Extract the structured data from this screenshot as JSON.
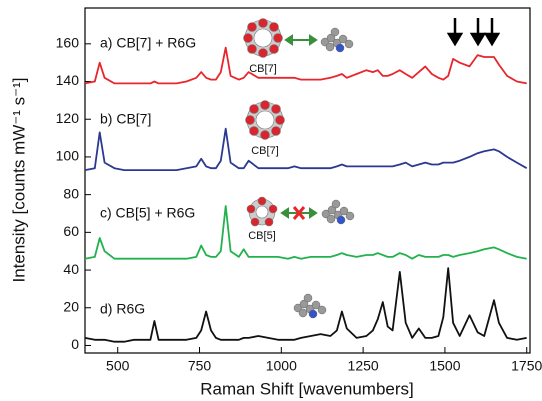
{
  "chart_data": {
    "type": "line",
    "xlabel": "Raman Shift [wavenumbers]",
    "ylabel": "Intensity [counts mW⁻¹ s⁻¹]",
    "x": [
      400,
      430,
      445,
      460,
      490,
      520,
      550,
      580,
      600,
      612,
      625,
      650,
      680,
      710,
      740,
      755,
      770,
      785,
      800,
      815,
      830,
      845,
      870,
      885,
      900,
      930,
      960,
      990,
      1020,
      1040,
      1060,
      1090,
      1120,
      1150,
      1170,
      1185,
      1200,
      1230,
      1260,
      1280,
      1295,
      1310,
      1325,
      1340,
      1362,
      1380,
      1400,
      1420,
      1440,
      1460,
      1480,
      1495,
      1510,
      1525,
      1545,
      1575,
      1600,
      1620,
      1650,
      1665,
      1690,
      1720,
      1750
    ],
    "series": [
      {
        "name": "a) CB[7] + R6G",
        "color": "#e8262b",
        "values": [
          139,
          140,
          150,
          142,
          139,
          139,
          139,
          139,
          139,
          140,
          139,
          139,
          139,
          140,
          142,
          145,
          142,
          141,
          141,
          145,
          158,
          143,
          141,
          142,
          145,
          142,
          142,
          142,
          142,
          142,
          141,
          141,
          141,
          142,
          143,
          144,
          142,
          144,
          146,
          145,
          146,
          143,
          143,
          144,
          146,
          144,
          142,
          145,
          148,
          144,
          142,
          141,
          143,
          152,
          150,
          148,
          154,
          153,
          153,
          149,
          143,
          140,
          139
        ]
      },
      {
        "name": "b) CB[7]",
        "color": "#2b3990",
        "values": [
          93,
          94,
          113,
          97,
          94,
          93,
          93,
          93,
          93,
          93,
          93,
          93,
          93,
          94,
          95,
          99,
          95,
          94,
          94,
          98,
          115,
          97,
          94,
          94,
          98,
          94,
          94,
          94,
          94,
          95,
          94,
          94,
          94,
          94,
          95,
          96,
          95,
          95,
          95,
          95,
          95,
          95,
          95,
          95,
          96,
          97,
          95,
          96,
          97,
          96,
          96,
          97,
          97,
          97,
          98,
          100,
          102,
          103,
          104,
          103,
          100,
          97,
          94
        ]
      },
      {
        "name": "c) CB[5] + R6G",
        "color": "#22b24c",
        "values": [
          46,
          47,
          57,
          50,
          46,
          46,
          46,
          46,
          46,
          46,
          46,
          46,
          46,
          46,
          47,
          53,
          48,
          47,
          47,
          50,
          74,
          50,
          47,
          51,
          47,
          47,
          47,
          47,
          46,
          47,
          46,
          47,
          47,
          47,
          48,
          49,
          48,
          47,
          48,
          48,
          49,
          48,
          47,
          47,
          49,
          48,
          46,
          48,
          47,
          47,
          47,
          48,
          48,
          47,
          48,
          49,
          50,
          51,
          52,
          51,
          49,
          47,
          46
        ]
      },
      {
        "name": "d) R6G",
        "color": "#111111",
        "values": [
          4,
          3,
          3,
          3,
          2,
          2,
          3,
          3,
          3,
          13,
          3,
          3,
          3,
          3,
          4,
          8,
          18,
          8,
          4,
          3,
          3,
          3,
          3,
          4,
          4,
          5,
          4,
          3,
          3,
          3,
          4,
          5,
          6,
          5,
          8,
          18,
          9,
          4,
          5,
          8,
          14,
          23,
          10,
          8,
          39,
          12,
          4,
          9,
          4,
          4,
          5,
          15,
          41,
          12,
          5,
          16,
          7,
          5,
          24,
          12,
          4,
          3,
          4
        ]
      }
    ],
    "annotations": [
      "CB[7]",
      "CB[7]",
      "CB[5]"
    ],
    "xlim": [
      400,
      1760
    ],
    "ylim": [
      -4,
      179
    ],
    "xticks": [
      500,
      750,
      1000,
      1250,
      1500,
      1750
    ],
    "yticks": [
      0,
      20,
      40,
      60,
      80,
      100,
      120,
      140,
      160
    ]
  }
}
